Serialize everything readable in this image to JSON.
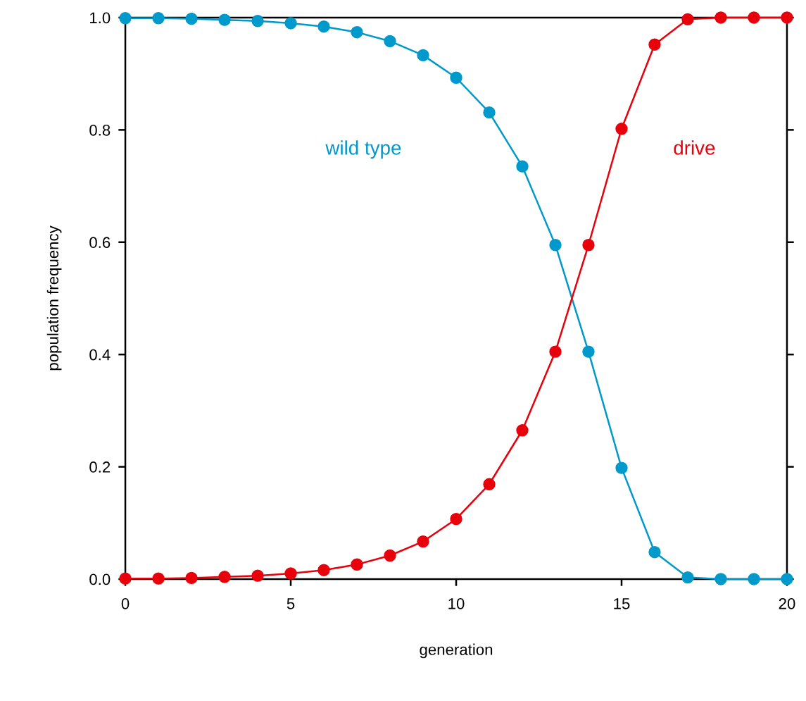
{
  "chart_data": {
    "type": "line",
    "xlabel": "generation",
    "ylabel": "population frequency",
    "x": [
      0,
      1,
      2,
      3,
      4,
      5,
      6,
      7,
      8,
      9,
      10,
      11,
      12,
      13,
      14,
      15,
      16,
      17,
      18,
      19,
      20
    ],
    "series": [
      {
        "name": "wild type",
        "color": "#0099cc",
        "values": [
          0.999,
          0.999,
          0.998,
          0.996,
          0.994,
          0.99,
          0.984,
          0.974,
          0.958,
          0.933,
          0.893,
          0.831,
          0.735,
          0.595,
          0.405,
          0.198,
          0.048,
          0.003,
          0.0,
          0.0,
          0.0
        ]
      },
      {
        "name": "drive",
        "color": "#e8000b",
        "values": [
          0.001,
          0.001,
          0.002,
          0.004,
          0.006,
          0.01,
          0.016,
          0.026,
          0.042,
          0.067,
          0.107,
          0.169,
          0.265,
          0.405,
          0.595,
          0.802,
          0.952,
          0.997,
          1.0,
          1.0,
          1.0
        ]
      }
    ],
    "xlim": [
      0,
      20
    ],
    "xticks": [
      0,
      5,
      10,
      15,
      20
    ],
    "ylim": [
      0,
      1
    ],
    "yticks": [
      {
        "value": 0,
        "label": "0.0"
      },
      {
        "value": 0.2,
        "label": "0.2"
      },
      {
        "value": 0.4,
        "label": "0.4"
      },
      {
        "value": 0.6,
        "label": "0.6"
      },
      {
        "value": 0.8,
        "label": "0.8"
      },
      {
        "value": 1,
        "label": "1.0"
      }
    ],
    "marker": "circle",
    "line_style": "solid",
    "grid": false,
    "legend": false
  }
}
